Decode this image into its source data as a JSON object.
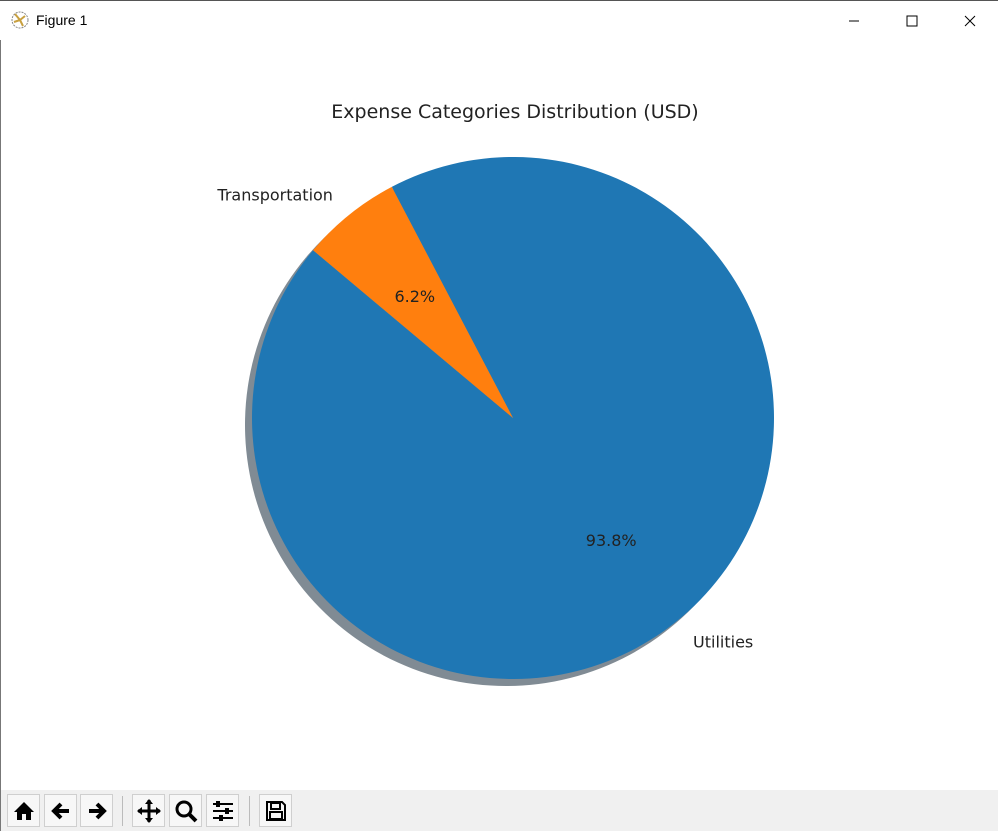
{
  "window": {
    "title": "Figure 1"
  },
  "toolbar": {
    "buttons": [
      "home-icon",
      "back-icon",
      "forward-icon",
      "pan-icon",
      "zoom-icon",
      "configure-subplots-icon",
      "save-icon"
    ]
  },
  "chart_data": {
    "type": "pie",
    "title": "Expense Categories Distribution (USD)",
    "categories": [
      "Utilities",
      "Transportation"
    ],
    "values": [
      93.8,
      6.2
    ],
    "pct_labels": [
      "93.8%",
      "6.2%"
    ],
    "colors": [
      "#1f77b4",
      "#ff7f0e"
    ],
    "startangle": 140,
    "shadow": true,
    "legend": "none"
  }
}
